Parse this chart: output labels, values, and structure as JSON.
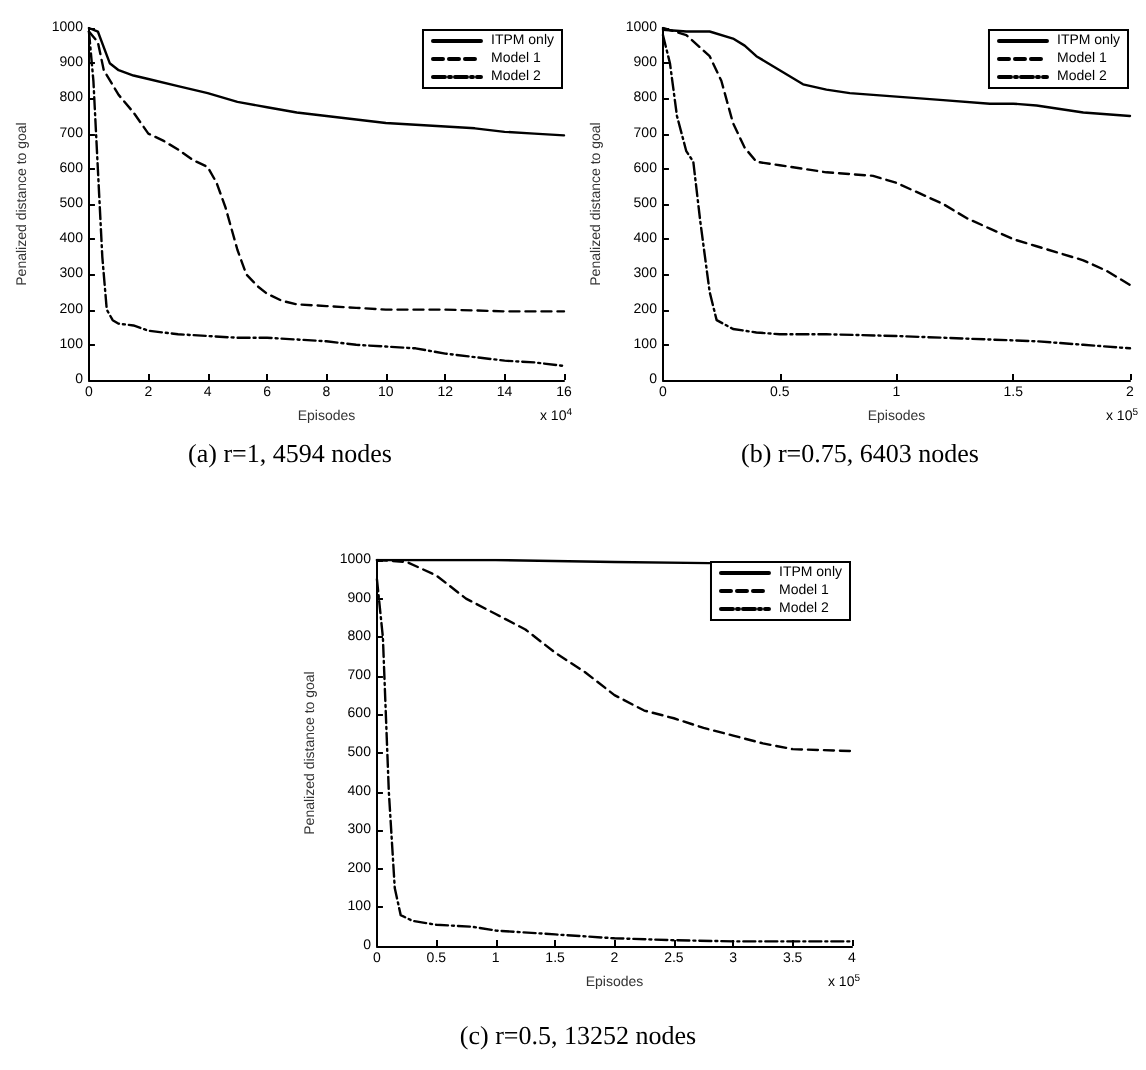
{
  "chart_data": [
    {
      "type": "line",
      "title": "(a) r=1, 4594 nodes",
      "xlabel": "Episodes",
      "ylabel": "Penalized distance to goal",
      "annotations": [
        "x 10$^{4}$"
      ],
      "legend": "top right",
      "marker": "none",
      "xlim": [
        0,
        16
      ],
      "xticks": [
        0,
        2,
        4,
        6,
        8,
        10,
        12,
        14,
        16
      ],
      "ylim": [
        0,
        1000
      ],
      "yticks": [
        0,
        100,
        200,
        300,
        400,
        500,
        600,
        700,
        800,
        900,
        1000
      ],
      "series": [
        {
          "name": "ITPM only",
          "color": "#000000",
          "line_style": "solid",
          "x": [
            0,
            0.3,
            0.7,
            1,
            1.5,
            2,
            3,
            4,
            5,
            6,
            7,
            8,
            9,
            10,
            11,
            12,
            13,
            14,
            15,
            16
          ],
          "values": [
            1000,
            990,
            900,
            880,
            865,
            855,
            835,
            815,
            790,
            775,
            760,
            750,
            740,
            730,
            725,
            720,
            715,
            705,
            700,
            695
          ]
        },
        {
          "name": "Model 1",
          "color": "#000000",
          "line_style": "dashed",
          "x": [
            0,
            0.3,
            0.5,
            1,
            1.5,
            2,
            2.5,
            3,
            3.5,
            4,
            4.3,
            4.6,
            5,
            5.3,
            5.7,
            6,
            6.5,
            7,
            8,
            9,
            10,
            12,
            14,
            16
          ],
          "values": [
            990,
            960,
            880,
            810,
            760,
            700,
            680,
            655,
            625,
            605,
            560,
            490,
            370,
            300,
            265,
            245,
            225,
            215,
            210,
            205,
            200,
            200,
            195,
            195
          ]
        },
        {
          "name": "Model 2",
          "color": "#000000",
          "line_style": "dashdot",
          "x": [
            0,
            0.15,
            0.3,
            0.45,
            0.6,
            0.8,
            1,
            1.5,
            2,
            3,
            4,
            5,
            6,
            7,
            8,
            9,
            10,
            11,
            12,
            13,
            14,
            15,
            16
          ],
          "values": [
            990,
            850,
            600,
            350,
            200,
            170,
            160,
            155,
            140,
            130,
            125,
            120,
            120,
            115,
            110,
            100,
            95,
            90,
            75,
            65,
            55,
            50,
            40
          ]
        }
      ]
    },
    {
      "type": "line",
      "title": "(b) r=0.75, 6403 nodes",
      "xlabel": "Episodes",
      "ylabel": "Penalized distance to goal",
      "annotations": [
        "x 10$^{5}$"
      ],
      "legend": "top right",
      "marker": "none",
      "xlim": [
        0,
        2
      ],
      "xticks": [
        0,
        0.5,
        1,
        1.5,
        2
      ],
      "ylim": [
        0,
        1000
      ],
      "yticks": [
        0,
        100,
        200,
        300,
        400,
        500,
        600,
        700,
        800,
        900,
        1000
      ],
      "series": [
        {
          "name": "ITPM only",
          "color": "#000000",
          "line_style": "solid",
          "x": [
            0,
            0.1,
            0.2,
            0.3,
            0.35,
            0.4,
            0.5,
            0.6,
            0.7,
            0.8,
            0.9,
            1,
            1.1,
            1.2,
            1.4,
            1.5,
            1.6,
            1.7,
            1.8,
            1.9,
            2
          ],
          "values": [
            995,
            990,
            990,
            970,
            950,
            920,
            880,
            840,
            825,
            815,
            810,
            805,
            800,
            795,
            785,
            785,
            780,
            770,
            760,
            755,
            750
          ]
        },
        {
          "name": "Model 1",
          "color": "#000000",
          "line_style": "dashed",
          "x": [
            0,
            0.1,
            0.15,
            0.2,
            0.25,
            0.3,
            0.35,
            0.4,
            0.5,
            0.6,
            0.7,
            0.8,
            0.9,
            0.95,
            1,
            1.1,
            1.2,
            1.3,
            1.4,
            1.5,
            1.6,
            1.7,
            1.8,
            1.9,
            2
          ],
          "values": [
            1000,
            980,
            950,
            920,
            850,
            730,
            660,
            620,
            610,
            600,
            590,
            585,
            580,
            570,
            560,
            530,
            500,
            460,
            430,
            400,
            380,
            360,
            340,
            310,
            270
          ]
        },
        {
          "name": "Model 2",
          "color": "#000000",
          "line_style": "dashdot",
          "x": [
            0,
            0.03,
            0.06,
            0.1,
            0.13,
            0.16,
            0.2,
            0.23,
            0.3,
            0.4,
            0.5,
            0.7,
            1,
            1.2,
            1.4,
            1.6,
            1.8,
            2
          ],
          "values": [
            980,
            900,
            750,
            650,
            620,
            450,
            250,
            170,
            145,
            135,
            130,
            130,
            125,
            120,
            115,
            110,
            100,
            90
          ]
        }
      ]
    },
    {
      "type": "line",
      "title": "(c) r=0.5, 13252 nodes",
      "xlabel": "Episodes",
      "ylabel": "Penalized distance to goal",
      "annotations": [
        "x 10$^{5}$"
      ],
      "legend": "top right",
      "marker": "none",
      "xlim": [
        0,
        4
      ],
      "xticks": [
        0,
        0.5,
        1,
        1.5,
        2,
        2.5,
        3,
        3.5,
        4
      ],
      "ylim": [
        0,
        1000
      ],
      "yticks": [
        0,
        100,
        200,
        300,
        400,
        500,
        600,
        700,
        800,
        900,
        1000
      ],
      "series": [
        {
          "name": "ITPM only",
          "color": "#000000",
          "line_style": "solid",
          "x": [
            0,
            1,
            2,
            2.8
          ],
          "values": [
            1000,
            1000,
            995,
            992
          ]
        },
        {
          "name": "Model 1",
          "color": "#000000",
          "line_style": "dashed",
          "x": [
            0,
            0.25,
            0.5,
            0.75,
            1,
            1.25,
            1.5,
            1.75,
            2,
            2.25,
            2.5,
            2.75,
            3,
            3.25,
            3.5,
            4
          ],
          "values": [
            1000,
            995,
            960,
            900,
            860,
            820,
            760,
            710,
            650,
            610,
            590,
            565,
            545,
            525,
            510,
            505
          ]
        },
        {
          "name": "Model 2",
          "color": "#000000",
          "line_style": "dashdot",
          "x": [
            0,
            0.05,
            0.1,
            0.15,
            0.2,
            0.3,
            0.5,
            0.8,
            1,
            1.5,
            2,
            2.5,
            3,
            4
          ],
          "values": [
            950,
            800,
            400,
            150,
            80,
            65,
            55,
            50,
            40,
            30,
            20,
            15,
            12,
            12
          ]
        }
      ]
    }
  ]
}
